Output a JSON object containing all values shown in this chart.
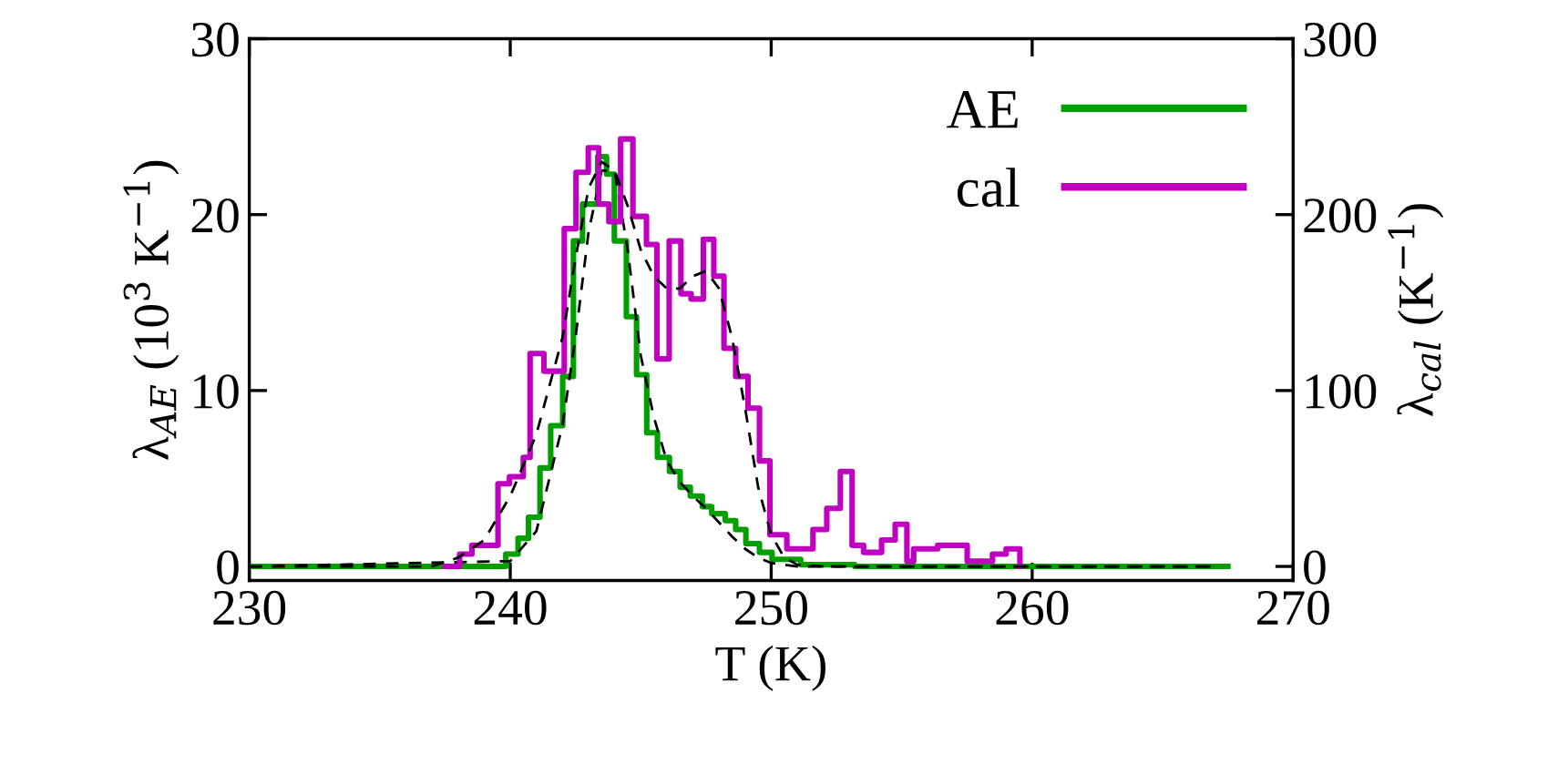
{
  "chart_data": {
    "type": "step",
    "xlabel": "T (K)",
    "ylabel": "λ$_{AE}$ (10$^{3}$ K$^{−1}$)",
    "y2label": "λ$_{cal}$ (K$^{−1}$)",
    "xlim": [
      230,
      270
    ],
    "xticks": [
      230,
      240,
      250,
      260,
      270
    ],
    "ylim": [
      -0.8,
      30
    ],
    "yticks": [
      0,
      10,
      20,
      30
    ],
    "y2lim": [
      -8,
      300
    ],
    "y2ticks": [
      0,
      100,
      200,
      300
    ],
    "legend": "top right",
    "grid": false,
    "series": [
      {
        "name": "AE",
        "color": "#00a000",
        "line_style": "solid",
        "x": [
          230,
          239.83,
          240.3,
          240.7,
          241.14,
          241.55,
          242.01,
          242.42,
          242.77,
          243.35,
          243.69,
          243.99,
          244.45,
          244.84,
          245.23,
          245.64,
          246.1,
          246.51,
          246.9,
          247.36,
          247.72,
          248.24,
          248.64,
          249.03,
          249.55,
          250.03,
          251.13,
          253.2,
          267.5
        ],
        "values": [
          0,
          0.7,
          1.6,
          2.8,
          5.6,
          8.0,
          10.8,
          18.5,
          20.6,
          23.3,
          22.3,
          18.5,
          14.2,
          10.9,
          7.6,
          6.2,
          5.4,
          4.5,
          4.0,
          3.4,
          3.0,
          2.6,
          2.1,
          1.3,
          0.8,
          0.4,
          0.1,
          0,
          0
        ]
      },
      {
        "name": "cal",
        "axis": "y2",
        "color": "#c000c0",
        "line_style": "solid",
        "x": [
          237.5,
          238.06,
          238.53,
          239.53,
          239.97,
          240.5,
          240.76,
          241.29,
          242.07,
          242.52,
          242.99,
          243.39,
          243.78,
          244.23,
          244.7,
          245.22,
          245.62,
          246.09,
          246.54,
          246.93,
          247.4,
          247.8,
          248.19,
          248.64,
          249.11,
          249.55,
          249.95,
          250.6,
          251.6,
          252.13,
          252.65,
          253.1,
          253.54,
          254.23,
          254.75,
          255.2,
          255.46,
          256.38,
          257.51,
          258.48,
          259.0,
          259.53
        ],
        "values": [
          0,
          7,
          12,
          47,
          51,
          62,
          121,
          111,
          192,
          224,
          238,
          206,
          196,
          243,
          199,
          183,
          118,
          185,
          155,
          152,
          186,
          165,
          124,
          108,
          90,
          60,
          18,
          10,
          21,
          33,
          54,
          12,
          8,
          15,
          24,
          3,
          10,
          12,
          3,
          7,
          10,
          0
        ]
      },
      {
        "type": "line",
        "color": "#000000",
        "line_style": "dashed",
        "x": [
          230,
          240,
          241,
          242,
          242.5,
          243,
          243.5,
          244,
          244.5,
          245,
          245.5,
          246,
          246.5,
          247,
          247.5,
          248,
          248.5,
          249,
          249.5,
          250,
          251,
          267
        ],
        "values": [
          0,
          0.3,
          2,
          8,
          13,
          19,
          22.5,
          22.5,
          18,
          12,
          8.5,
          6,
          4.8,
          4,
          3.3,
          2.5,
          1.7,
          1,
          0.5,
          0.2,
          0,
          0
        ]
      },
      {
        "type": "line",
        "axis": "y2",
        "color": "#000000",
        "line_style": "dashed",
        "x": [
          230,
          237,
          238,
          239,
          240,
          241,
          242,
          242.5,
          243,
          243.5,
          244,
          244.5,
          245,
          245.5,
          246,
          246.5,
          247,
          247.5,
          248,
          248.5,
          249,
          249.5,
          250,
          250.5,
          251,
          252,
          267
        ],
        "values": [
          0,
          0,
          5,
          15,
          40,
          75,
          130,
          175,
          215,
          230,
          225,
          205,
          180,
          165,
          158,
          158,
          165,
          168,
          158,
          130,
          90,
          45,
          18,
          5,
          1,
          0,
          0
        ]
      }
    ]
  }
}
